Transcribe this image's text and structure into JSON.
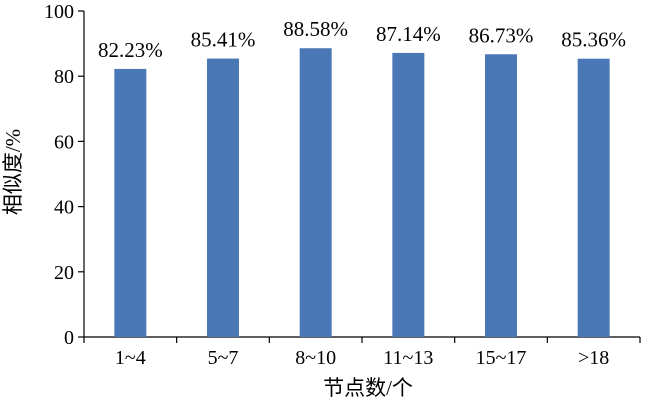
{
  "chart_data": {
    "type": "bar",
    "categories": [
      "1~4",
      "5~7",
      "8~10",
      "11~13",
      "15~17",
      ">18"
    ],
    "values": [
      82.23,
      85.41,
      88.58,
      87.14,
      86.73,
      85.36
    ],
    "data_labels": [
      "82.23%",
      "85.41%",
      "88.58%",
      "87.14%",
      "86.73%",
      "85.36%"
    ],
    "title": "",
    "xlabel": "节点数/个",
    "ylabel": "相似度/%",
    "ylim": [
      0,
      100
    ],
    "yticks": [
      0,
      20,
      40,
      60,
      80,
      100
    ],
    "grid": false,
    "legend": "none",
    "bar_color": "#4a78b6"
  }
}
